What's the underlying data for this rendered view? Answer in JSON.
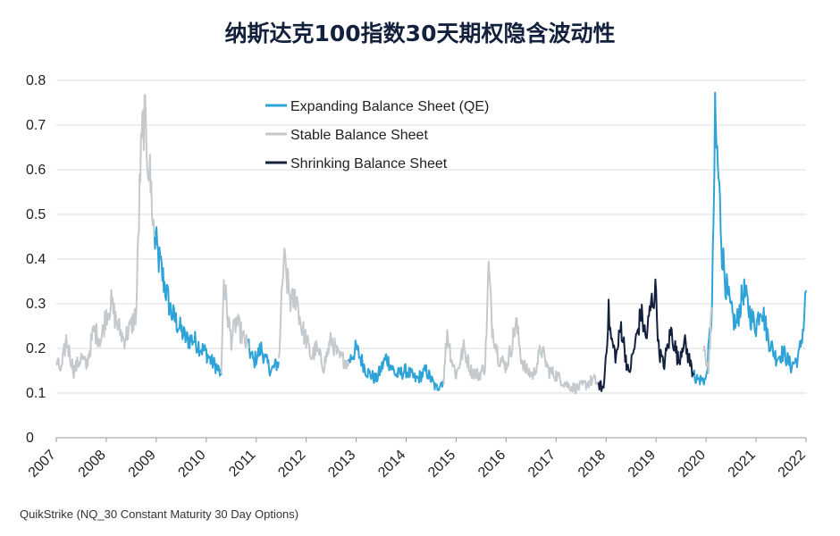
{
  "title": "纳斯达克100指数30天期权隐含波动性",
  "source": "QuikStrike (NQ_30 Constant Maturity 30 Day Options)",
  "colors": {
    "expanding": "#2ea3d8",
    "stable": "#c4c9cd",
    "shrinking": "#14213d",
    "grid": "#dddddd",
    "axis": "#999999"
  },
  "chart_data": {
    "type": "line",
    "title": "纳斯达克100指数30天期权隐含波动性",
    "xlabel": "",
    "ylabel": "",
    "xlim": [
      2007,
      2022
    ],
    "ylim": [
      0,
      0.8
    ],
    "yticks": [
      "0",
      "0.1",
      "0.2",
      "0.3",
      "0.4",
      "0.5",
      "0.6",
      "0.7",
      "0.8"
    ],
    "xticks": [
      "2007",
      "2008",
      "2009",
      "2010",
      "2011",
      "2012",
      "2013",
      "2014",
      "2015",
      "2016",
      "2017",
      "2018",
      "2019",
      "2020",
      "2021",
      "2022"
    ],
    "grid": "horizontal",
    "legend_position": "top-center",
    "series": [
      {
        "name": "Expanding Balance Sheet (QE)",
        "color": "#2ea3d8",
        "segments": [
          {
            "x": [
              2008.96,
              2009.05,
              2009.15,
              2009.3,
              2009.45,
              2009.6,
              2009.75,
              2009.9,
              2010.0,
              2010.1,
              2010.2,
              2010.3
            ],
            "y": [
              0.45,
              0.4,
              0.35,
              0.28,
              0.25,
              0.22,
              0.22,
              0.2,
              0.19,
              0.17,
              0.16,
              0.14
            ]
          },
          {
            "x": [
              2010.85,
              2010.95,
              2011.1,
              2011.2,
              2011.3,
              2011.45
            ],
            "y": [
              0.2,
              0.17,
              0.2,
              0.17,
              0.15,
              0.17
            ]
          },
          {
            "x": [
              2012.85,
              2013.0,
              2013.2,
              2013.4,
              2013.6,
              2013.8,
              2014.0,
              2014.2,
              2014.4,
              2014.6,
              2014.75
            ],
            "y": [
              0.17,
              0.2,
              0.15,
              0.13,
              0.18,
              0.14,
              0.15,
              0.13,
              0.15,
              0.11,
              0.13
            ]
          },
          {
            "x": [
              2019.75,
              2019.85,
              2020.0,
              2020.12,
              2020.18,
              2020.25,
              2020.32,
              2020.4,
              2020.5,
              2020.6,
              2020.75,
              2020.9,
              2021.0,
              2021.1,
              2021.25,
              2021.4,
              2021.55,
              2021.7,
              2021.85,
              2021.95,
              2022.0
            ],
            "y": [
              0.14,
              0.13,
              0.13,
              0.29,
              0.7,
              0.58,
              0.42,
              0.34,
              0.28,
              0.25,
              0.33,
              0.27,
              0.25,
              0.3,
              0.22,
              0.18,
              0.19,
              0.16,
              0.18,
              0.25,
              0.33
            ]
          }
        ]
      },
      {
        "name": "Stable Balance Sheet",
        "color": "#c4c9cd",
        "segments": [
          {
            "x": [
              2007.0,
              2007.1,
              2007.2,
              2007.35,
              2007.5,
              2007.6,
              2007.75,
              2007.9,
              2008.0,
              2008.1,
              2008.2,
              2008.35,
              2008.5,
              2008.6,
              2008.68,
              2008.75,
              2008.82,
              2008.9,
              2008.96
            ],
            "y": [
              0.17,
              0.15,
              0.22,
              0.15,
              0.18,
              0.16,
              0.24,
              0.22,
              0.28,
              0.3,
              0.26,
              0.22,
              0.25,
              0.28,
              0.6,
              0.72,
              0.65,
              0.55,
              0.45
            ]
          },
          {
            "x": [
              2010.3,
              2010.35,
              2010.42,
              2010.5,
              2010.6,
              2010.75,
              2010.85
            ],
            "y": [
              0.14,
              0.36,
              0.28,
              0.22,
              0.26,
              0.22,
              0.2
            ]
          },
          {
            "x": [
              2011.45,
              2011.55,
              2011.62,
              2011.7,
              2011.8,
              2011.9,
              2012.0,
              2012.1,
              2012.2,
              2012.35,
              2012.5,
              2012.65,
              2012.85
            ],
            "y": [
              0.17,
              0.4,
              0.35,
              0.3,
              0.32,
              0.25,
              0.22,
              0.18,
              0.2,
              0.16,
              0.22,
              0.18,
              0.17
            ]
          },
          {
            "x": [
              2014.75,
              2014.82,
              2014.9,
              2015.0,
              2015.15,
              2015.3,
              2015.45,
              2015.58,
              2015.65,
              2015.72,
              2015.85,
              2016.0,
              2016.1,
              2016.2,
              2016.3,
              2016.4,
              2016.55,
              2016.7,
              2016.85,
              2017.0,
              2017.2,
              2017.4,
              2017.6,
              2017.75,
              2017.85
            ],
            "y": [
              0.13,
              0.24,
              0.18,
              0.14,
              0.2,
              0.15,
              0.14,
              0.16,
              0.38,
              0.25,
              0.18,
              0.16,
              0.2,
              0.26,
              0.18,
              0.15,
              0.14,
              0.2,
              0.15,
              0.14,
              0.12,
              0.11,
              0.12,
              0.13,
              0.12
            ]
          },
          {
            "x": [
              2019.95,
              2020.05,
              2020.12
            ],
            "y": [
              0.19,
              0.16,
              0.29
            ]
          }
        ]
      },
      {
        "name": "Shrinking Balance Sheet",
        "color": "#14213d",
        "segments": [
          {
            "x": [
              2017.85,
              2017.95,
              2018.05,
              2018.1,
              2018.2,
              2018.3,
              2018.45,
              2018.6,
              2018.7,
              2018.8,
              2018.9,
              2019.0,
              2019.05,
              2019.15,
              2019.3,
              2019.45,
              2019.55,
              2019.65,
              2019.75
            ],
            "y": [
              0.12,
              0.11,
              0.28,
              0.22,
              0.18,
              0.25,
              0.14,
              0.22,
              0.28,
              0.22,
              0.3,
              0.33,
              0.2,
              0.16,
              0.24,
              0.17,
              0.22,
              0.18,
              0.14
            ]
          }
        ]
      }
    ]
  }
}
